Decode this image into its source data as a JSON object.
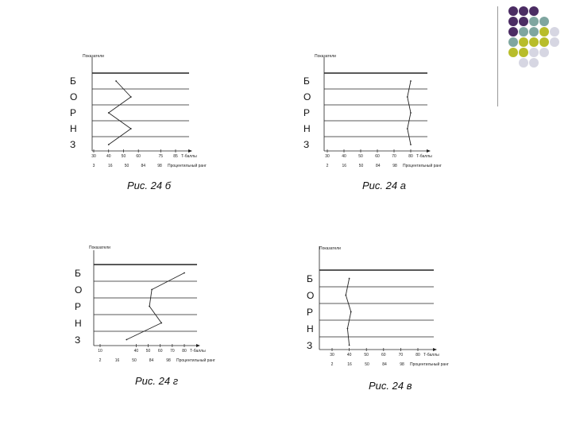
{
  "decor": {
    "dot_colors": [
      "#4b2c63",
      "#7fa6a0",
      "#b8bd2a",
      "#d6d6e2"
    ]
  },
  "panels": [
    {
      "id": "b",
      "caption": "Рис. 24 б",
      "ylabel": "Показатели",
      "letters": [
        "Б",
        "О",
        "Р",
        "Н",
        "З"
      ],
      "axis1_ticks": [
        "30",
        "40",
        "50",
        "60",
        "75",
        "85"
      ],
      "axis1_name": "Т-баллы",
      "axis2_ticks": [
        "3",
        "16",
        "50",
        "84",
        "98"
      ],
      "axis2_name": "Процентильный ранг",
      "profile_t": [
        45,
        55,
        40,
        55,
        40
      ]
    },
    {
      "id": "a",
      "caption": "Рис. 24 а",
      "ylabel": "Показатели",
      "letters": [
        "Б",
        "О",
        "Р",
        "Н",
        "З"
      ],
      "axis1_ticks": [
        "30",
        "40",
        "50",
        "60",
        "70",
        "80"
      ],
      "axis1_name": "Т-баллы",
      "axis2_ticks": [
        "2",
        "16",
        "50",
        "84",
        "98"
      ],
      "axis2_name": "Процентильный ранг",
      "profile_t": [
        80,
        78,
        80,
        78,
        80
      ]
    },
    {
      "id": "g",
      "caption": "Рис. 24 г",
      "ylabel": "Показатели",
      "letters": [
        "Б",
        "О",
        "Р",
        "Н",
        "З"
      ],
      "axis1_ticks": [
        "10",
        "40",
        "50",
        "60",
        "70",
        "80"
      ],
      "axis1_name": "Т-баллы",
      "axis2_ticks": [
        "2",
        "16",
        "50",
        "84",
        "98"
      ],
      "axis2_name": "Процентильный ранг",
      "profile_t": [
        80,
        53,
        51,
        61,
        32
      ]
    },
    {
      "id": "v",
      "caption": "Рис. 24 в",
      "ylabel": "Показатели",
      "letters": [
        "Б",
        "О",
        "Р",
        "Н",
        "З"
      ],
      "axis1_ticks": [
        "30",
        "40",
        "50",
        "60",
        "70",
        "80"
      ],
      "axis1_name": "Т-баллы",
      "axis2_ticks": [
        "2",
        "16",
        "50",
        "84",
        "98"
      ],
      "axis2_name": "Процентильный ранг",
      "profile_t": [
        40,
        38,
        41,
        39,
        40
      ]
    }
  ]
}
